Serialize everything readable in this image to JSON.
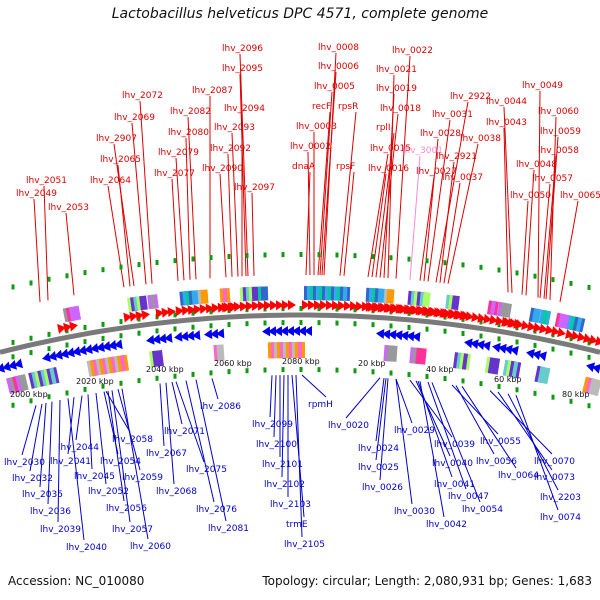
{
  "title": "Lactobacillus helveticus DPC 4571, complete genome",
  "accession": "Accession: NC_010080",
  "summary": "Topology: circular; Length: 2,080,931 bp; Genes: 1,683",
  "colors": {
    "forward_label": "#dd0000",
    "reverse_label": "#0000cc",
    "pseudo_label": "#ff88cc",
    "backbone": "#7a7a7a",
    "forward_arrow": "#ff0000",
    "reverse_arrow": "#0000ee",
    "tick": "#119911"
  },
  "scale_labels": [
    {
      "text": "2000 kbp"
    },
    {
      "text": "2020 kbp"
    },
    {
      "text": "2040 kbp"
    },
    {
      "text": "2060 kbp"
    },
    {
      "text": "2080 kbp"
    },
    {
      "text": "20 kbp"
    },
    {
      "text": "40 kbp"
    },
    {
      "text": "60 kbp"
    },
    {
      "text": "80 kbp"
    }
  ],
  "forward_genes": [
    "lhv_2051",
    "lhv_2049",
    "lhv_2053",
    "lhv_2064",
    "lhv_2065",
    "lhv_2907",
    "lhv_2069",
    "lhv_2072",
    "lhv_2077",
    "lhv_2079",
    "lhv_2080",
    "lhv_2082",
    "lhv_2087",
    "lhv_2090",
    "lhv_2092",
    "lhv_2093",
    "lhv_2094",
    "lhv_2095",
    "lhv_2096",
    "lhv_2097",
    "dnaA",
    "lhv_0002",
    "lhv_0003",
    "recF",
    "lhv_0005",
    "lhv_0006",
    "lhv_0008",
    "rpsR",
    "rpsF",
    "lhv_0015",
    "lhv_0016",
    "rplI",
    "lhv_0018",
    "lhv_0019",
    "lhv_0021",
    "lhv_0022",
    "lhv_3001",
    "lhv_0027",
    "lhv_0028",
    "lhv_0031",
    "lhv_2922",
    "lhv_2921",
    "lhv_0037",
    "lhv_0038",
    "lhv_0043",
    "lhv_0044",
    "lhv_0049",
    "lhv_0048",
    "lhv_0050",
    "lhv_0057",
    "lhv_0058",
    "lhv_0059",
    "lhv_0060",
    "lhv_0065"
  ],
  "reverse_genes": [
    "lhv_2030",
    "lhv_2032",
    "lhv_2035",
    "lhv_2036",
    "lhv_2039",
    "lhv_2040",
    "lhv_2041",
    "lhv_2044",
    "lhv_2045",
    "lhv_2052",
    "lhv_2054",
    "lhv_2056",
    "lhv_2057",
    "lhv_2058",
    "lhv_2059",
    "lhv_2060",
    "lhv_2067",
    "lhv_2068",
    "lhv_2071",
    "lhv_2075",
    "lhv_2076",
    "lhv_2081",
    "lhv_2086",
    "lhv_2099",
    "lhv_2100",
    "lhv_2101",
    "lhv_2102",
    "lhv_2103",
    "trmE",
    "lhv_2105",
    "rpmH",
    "lhv_0020",
    "lhv_0024",
    "lhv_0025",
    "lhv_0026",
    "lhv_0029",
    "lhv_0030",
    "lhv_0039",
    "lhv_0040",
    "lhv_0041",
    "lhv_0042",
    "lhv_0047",
    "lhv_0054",
    "lhv_0055",
    "lhv_0056",
    "lhv_0064",
    "lhv_0070",
    "lhv_0073",
    "lhv_2203",
    "lhv_0074"
  ]
}
